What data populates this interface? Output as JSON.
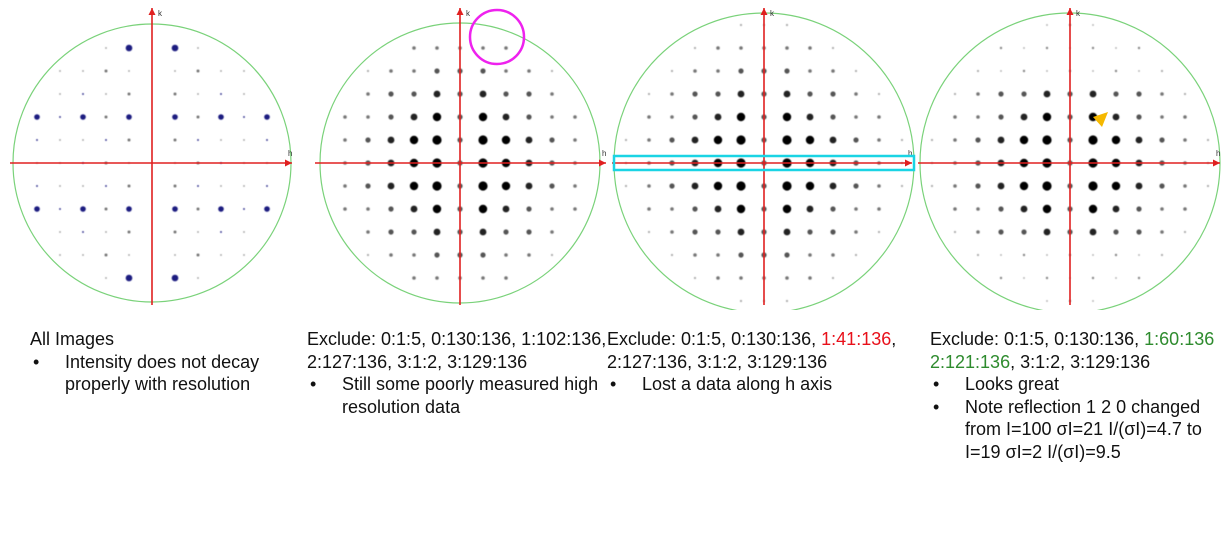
{
  "axis_labels": {
    "k": "k",
    "h": "h"
  },
  "colors": {
    "circle": "#7ad27a",
    "axis": "#e02020",
    "magenta_circle": "#ee22ee",
    "cyan_box": "#1ad4e4",
    "arrow": "#f5b800",
    "spot_blue": "#1a1a80",
    "spot_black": "#000000",
    "red_text": "#e8101a",
    "green_text": "#2e8b2e"
  },
  "panels": [
    {
      "mode": "all",
      "caption": {
        "title": "All Images",
        "bullets": [
          "Intensity does not decay properly with resolution"
        ]
      }
    },
    {
      "mode": "ex1",
      "annotation": "magenta-circle",
      "caption": {
        "segments": [
          {
            "text": "Exclude: 0:1:5, 0:130:136, 1:102:136, 2:127:136, 3:1:2, 3:129:136",
            "style": "plain"
          }
        ],
        "bullets": [
          "Still some poorly measured high resolution data"
        ]
      }
    },
    {
      "mode": "ex2",
      "annotation": "cyan-box",
      "caption": {
        "segments": [
          {
            "text": "Exclude: 0:1:5, 0:130:136, ",
            "style": "plain"
          },
          {
            "text": "1:41:136",
            "style": "red"
          },
          {
            "text": ", 2:127:136, 3:1:2, 3:129:136",
            "style": "plain"
          }
        ],
        "bullets": [
          "Lost a data along h axis"
        ]
      }
    },
    {
      "mode": "ex3",
      "annotation": "yellow-arrow",
      "caption": {
        "segments": [
          {
            "text": "Exclude: 0:1:5, 0:130:136, ",
            "style": "plain"
          },
          {
            "text": "1:60:136",
            "style": "green"
          },
          {
            "text": " ",
            "style": "plain"
          },
          {
            "text": "2:121:136",
            "style": "green"
          },
          {
            "text": ", 3:1:2, 3:129:136",
            "style": "plain"
          }
        ],
        "bullets": [
          "Looks great",
          "Note reflection 1 2 0 changed from I=100  σI=21 I/(σI)=4.7 to I=19 σI=2 I/(σI)=9.5"
        ]
      }
    }
  ]
}
